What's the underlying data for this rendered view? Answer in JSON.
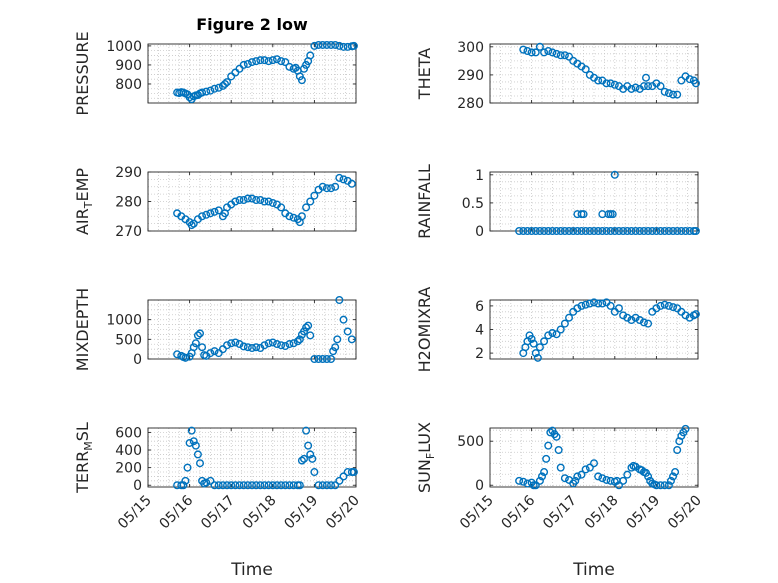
{
  "figure": {
    "title": "Figure 2 low",
    "xlabel": "Time",
    "marker_color": "#0072BD"
  },
  "chart_data": [
    {
      "type": "scatter",
      "ylabel_parts": [
        "PRESSURE"
      ],
      "xlim": [
        0,
        5
      ],
      "ylim": [
        700,
        1010
      ],
      "yticks": [
        800,
        900,
        1000
      ],
      "ytick_labels": [
        "800",
        "900",
        "1000"
      ],
      "x": [
        0.7,
        0.75,
        0.8,
        0.85,
        0.9,
        0.95,
        1.0,
        1.05,
        1.1,
        1.15,
        1.2,
        1.25,
        1.3,
        1.4,
        1.5,
        1.6,
        1.7,
        1.8,
        1.85,
        1.9,
        2.0,
        2.1,
        2.2,
        2.3,
        2.4,
        2.5,
        2.6,
        2.7,
        2.8,
        2.9,
        3.0,
        3.1,
        3.2,
        3.3,
        3.4,
        3.5,
        3.55,
        3.6,
        3.65,
        3.7,
        3.75,
        3.8,
        3.85,
        3.9,
        4.0,
        4.1,
        4.2,
        4.3,
        4.4,
        4.5,
        4.6,
        4.7,
        4.8,
        4.9,
        4.95
      ],
      "y": [
        755,
        752,
        757,
        755,
        750,
        745,
        730,
        720,
        735,
        740,
        742,
        750,
        755,
        760,
        765,
        775,
        780,
        790,
        800,
        810,
        840,
        860,
        880,
        900,
        905,
        915,
        920,
        925,
        925,
        920,
        925,
        930,
        920,
        915,
        890,
        880,
        885,
        870,
        840,
        820,
        880,
        900,
        920,
        950,
        1000,
        1005,
        1005,
        1005,
        1005,
        1005,
        1000,
        995,
        995,
        998,
        1000
      ]
    },
    {
      "type": "scatter",
      "ylabel_parts": [
        "THETA"
      ],
      "xlim": [
        0,
        5
      ],
      "ylim": [
        280,
        301
      ],
      "yticks": [
        280,
        290,
        300
      ],
      "ytick_labels": [
        "280",
        "290",
        "300"
      ],
      "x": [
        0.8,
        0.9,
        1.0,
        1.1,
        1.2,
        1.3,
        1.4,
        1.5,
        1.6,
        1.7,
        1.8,
        1.9,
        2.0,
        2.1,
        2.2,
        2.3,
        2.4,
        2.5,
        2.6,
        2.7,
        2.8,
        2.9,
        3.0,
        3.1,
        3.2,
        3.3,
        3.4,
        3.5,
        3.6,
        3.7,
        3.75,
        3.8,
        3.9,
        4.0,
        4.1,
        4.2,
        4.3,
        4.4,
        4.5,
        4.6,
        4.7,
        4.8,
        4.9,
        4.95
      ],
      "y": [
        299,
        298.5,
        298,
        298,
        300,
        298,
        298.5,
        298,
        297.5,
        297,
        297,
        296.5,
        295,
        294,
        293,
        292,
        290,
        289,
        288,
        288,
        287,
        287,
        286.5,
        286,
        285,
        286,
        285,
        285.5,
        285,
        286,
        289,
        286,
        286,
        287,
        286,
        284,
        283.5,
        283,
        283,
        288,
        289.5,
        288.5,
        288,
        287
      ]
    },
    {
      "type": "scatter",
      "ylabel_parts": [
        "AIR",
        "T",
        "EMP"
      ],
      "xlim": [
        0,
        5
      ],
      "ylim": [
        270,
        290
      ],
      "yticks": [
        270,
        280,
        290
      ],
      "ytick_labels": [
        "270",
        "280",
        "290"
      ],
      "x": [
        0.7,
        0.8,
        0.9,
        1.0,
        1.05,
        1.1,
        1.2,
        1.3,
        1.4,
        1.5,
        1.6,
        1.7,
        1.8,
        1.85,
        1.9,
        2.0,
        2.1,
        2.2,
        2.3,
        2.4,
        2.5,
        2.6,
        2.7,
        2.8,
        2.9,
        3.0,
        3.1,
        3.2,
        3.3,
        3.4,
        3.5,
        3.6,
        3.65,
        3.7,
        3.8,
        3.9,
        4.0,
        4.1,
        4.2,
        4.3,
        4.4,
        4.5,
        4.6,
        4.7,
        4.8,
        4.9
      ],
      "y": [
        276,
        275,
        274,
        273,
        272,
        272.5,
        274,
        275,
        275.5,
        276,
        276.5,
        277,
        275,
        276,
        278,
        279,
        280,
        280.5,
        280.5,
        281,
        281,
        280.5,
        280.5,
        280,
        280,
        279.5,
        279,
        278,
        276,
        275,
        274.5,
        274,
        273,
        275,
        278,
        280,
        282,
        284,
        285,
        284.5,
        284.5,
        285,
        288,
        287.5,
        287,
        286
      ]
    },
    {
      "type": "scatter",
      "ylabel_parts": [
        "RAINFALL"
      ],
      "xlim": [
        0,
        5
      ],
      "ylim": [
        0,
        1.05
      ],
      "yticks": [
        0,
        0.5,
        1
      ],
      "ytick_labels": [
        "0",
        "0.5",
        "1"
      ],
      "x": [
        0.7,
        0.8,
        0.9,
        1.0,
        1.1,
        1.2,
        1.3,
        1.4,
        1.5,
        1.6,
        1.7,
        1.8,
        1.9,
        2.0,
        2.1,
        2.2,
        2.3,
        2.4,
        2.5,
        2.6,
        2.7,
        2.8,
        2.9,
        3.0,
        3.1,
        3.2,
        3.3,
        3.4,
        3.5,
        3.6,
        3.7,
        3.8,
        3.9,
        4.0,
        4.1,
        4.2,
        4.3,
        4.4,
        4.5,
        4.6,
        4.7,
        4.8,
        4.9,
        4.95,
        2.1,
        2.2,
        2.25,
        2.7,
        2.85,
        2.9,
        2.95,
        3.0
      ],
      "y": [
        0,
        0,
        0,
        0,
        0,
        0,
        0,
        0,
        0,
        0,
        0,
        0,
        0,
        0,
        0,
        0,
        0,
        0,
        0,
        0,
        0,
        0,
        0,
        0,
        0,
        0,
        0,
        0,
        0,
        0,
        0,
        0,
        0,
        0,
        0,
        0,
        0,
        0,
        0,
        0,
        0,
        0,
        0,
        0,
        0.3,
        0.3,
        0.3,
        0.3,
        0.3,
        0.3,
        0.3,
        1.0
      ]
    },
    {
      "type": "scatter",
      "ylabel_parts": [
        "MIXDEPTH"
      ],
      "xlim": [
        0,
        5
      ],
      "ylim": [
        0,
        1500
      ],
      "yticks": [
        0,
        500,
        1000
      ],
      "ytick_labels": [
        "0",
        "500",
        "1000"
      ],
      "x": [
        0.7,
        0.8,
        0.85,
        0.9,
        1.0,
        1.05,
        1.1,
        1.15,
        1.2,
        1.25,
        1.3,
        1.35,
        1.4,
        1.5,
        1.6,
        1.7,
        1.8,
        1.9,
        2.0,
        2.1,
        2.2,
        2.3,
        2.4,
        2.5,
        2.6,
        2.7,
        2.8,
        2.9,
        3.0,
        3.1,
        3.2,
        3.3,
        3.4,
        3.5,
        3.6,
        3.65,
        3.7,
        3.75,
        3.8,
        3.85,
        3.9,
        4.0,
        4.1,
        4.2,
        4.3,
        4.4,
        4.45,
        4.5,
        4.55,
        4.6,
        4.7,
        4.8,
        4.9
      ],
      "y": [
        120,
        80,
        50,
        30,
        60,
        150,
        300,
        400,
        600,
        650,
        300,
        100,
        80,
        150,
        200,
        150,
        250,
        350,
        400,
        420,
        380,
        320,
        300,
        280,
        300,
        280,
        350,
        400,
        420,
        380,
        350,
        330,
        380,
        400,
        450,
        500,
        620,
        700,
        800,
        850,
        600,
        0,
        0,
        0,
        0,
        0,
        200,
        300,
        500,
        1500,
        1000,
        700,
        500
      ]
    },
    {
      "type": "scatter",
      "ylabel_parts": [
        "H2OMIXRA"
      ],
      "xlim": [
        0,
        5
      ],
      "ylim": [
        1.5,
        6.5
      ],
      "yticks": [
        2,
        4,
        6
      ],
      "ytick_labels": [
        "2",
        "4",
        "6"
      ],
      "x": [
        0.8,
        0.85,
        0.9,
        0.95,
        1.0,
        1.05,
        1.1,
        1.15,
        1.2,
        1.3,
        1.4,
        1.5,
        1.6,
        1.7,
        1.8,
        1.9,
        2.0,
        2.1,
        2.2,
        2.3,
        2.4,
        2.5,
        2.6,
        2.7,
        2.8,
        2.9,
        3.0,
        3.1,
        3.2,
        3.3,
        3.4,
        3.5,
        3.6,
        3.7,
        3.8,
        3.9,
        4.0,
        4.1,
        4.2,
        4.3,
        4.4,
        4.5,
        4.6,
        4.7,
        4.8,
        4.9,
        4.95
      ],
      "y": [
        2.0,
        2.5,
        3.0,
        3.5,
        3.2,
        2.8,
        2.0,
        1.6,
        2.5,
        3.0,
        3.5,
        3.7,
        3.6,
        4.0,
        4.5,
        5.0,
        5.5,
        5.8,
        6.0,
        6.1,
        6.2,
        6.3,
        6.2,
        6.2,
        6.3,
        6.0,
        5.5,
        5.8,
        5.2,
        5.0,
        4.8,
        5.0,
        4.8,
        4.6,
        4.5,
        5.5,
        5.8,
        6.0,
        6.1,
        6.0,
        5.9,
        5.8,
        5.5,
        5.2,
        5.0,
        5.2,
        5.3
      ]
    },
    {
      "type": "scatter",
      "ylabel_parts": [
        "TERR",
        "M",
        "SL"
      ],
      "xlim": [
        0,
        5
      ],
      "ylim": [
        -20,
        650
      ],
      "yticks": [
        0,
        200,
        400,
        600
      ],
      "ytick_labels": [
        "0",
        "200",
        "400",
        "600"
      ],
      "x": [
        0.7,
        0.8,
        0.85,
        0.9,
        0.95,
        1.0,
        1.05,
        1.1,
        1.15,
        1.2,
        1.25,
        1.3,
        1.35,
        1.4,
        1.5,
        1.6,
        1.7,
        1.8,
        1.9,
        2.0,
        2.1,
        2.2,
        2.3,
        2.4,
        2.5,
        2.6,
        2.7,
        2.8,
        2.9,
        3.0,
        3.1,
        3.2,
        3.3,
        3.4,
        3.5,
        3.6,
        3.65,
        3.7,
        3.75,
        3.8,
        3.85,
        3.9,
        3.95,
        4.0,
        4.1,
        4.2,
        4.3,
        4.4,
        4.5,
        4.6,
        4.7,
        4.8,
        4.9,
        4.95
      ],
      "y": [
        0,
        0,
        0,
        50,
        200,
        480,
        620,
        500,
        450,
        350,
        250,
        50,
        20,
        30,
        50,
        0,
        0,
        0,
        0,
        0,
        0,
        0,
        0,
        0,
        0,
        0,
        0,
        0,
        0,
        0,
        0,
        0,
        0,
        0,
        0,
        0,
        0,
        280,
        300,
        620,
        450,
        350,
        300,
        150,
        0,
        0,
        0,
        0,
        0,
        50,
        100,
        150,
        150,
        150
      ]
    },
    {
      "type": "scatter",
      "ylabel_parts": [
        "SUN",
        "F",
        "LUX"
      ],
      "xlim": [
        0,
        5
      ],
      "ylim": [
        -20,
        650
      ],
      "yticks": [
        0,
        500
      ],
      "ytick_labels": [
        "0",
        "500"
      ],
      "x": [
        0.7,
        0.8,
        0.9,
        1.0,
        1.05,
        1.1,
        1.2,
        1.25,
        1.3,
        1.35,
        1.4,
        1.45,
        1.5,
        1.55,
        1.6,
        1.65,
        1.7,
        1.8,
        1.9,
        2.0,
        2.05,
        2.1,
        2.2,
        2.3,
        2.4,
        2.5,
        2.6,
        2.7,
        2.8,
        2.9,
        3.0,
        3.05,
        3.1,
        3.2,
        3.3,
        3.4,
        3.45,
        3.5,
        3.6,
        3.65,
        3.7,
        3.75,
        3.8,
        3.85,
        3.9,
        3.95,
        4.0,
        4.1,
        4.2,
        4.3,
        4.35,
        4.4,
        4.45,
        4.5,
        4.55,
        4.6,
        4.65,
        4.7
      ],
      "y": [
        50,
        40,
        20,
        30,
        0,
        0,
        50,
        100,
        150,
        300,
        450,
        600,
        620,
        580,
        550,
        400,
        200,
        80,
        60,
        20,
        50,
        100,
        120,
        180,
        200,
        250,
        100,
        80,
        60,
        50,
        40,
        50,
        0,
        50,
        120,
        200,
        220,
        210,
        180,
        170,
        150,
        140,
        100,
        50,
        20,
        10,
        0,
        0,
        0,
        0,
        50,
        100,
        150,
        400,
        500,
        560,
        600,
        640
      ]
    }
  ],
  "xaxis": {
    "tick_values": [
      0,
      1,
      2,
      3,
      4,
      5
    ],
    "tick_labels": [
      "05/15",
      "05/16",
      "05/17",
      "05/18",
      "05/19",
      "05/20"
    ]
  }
}
